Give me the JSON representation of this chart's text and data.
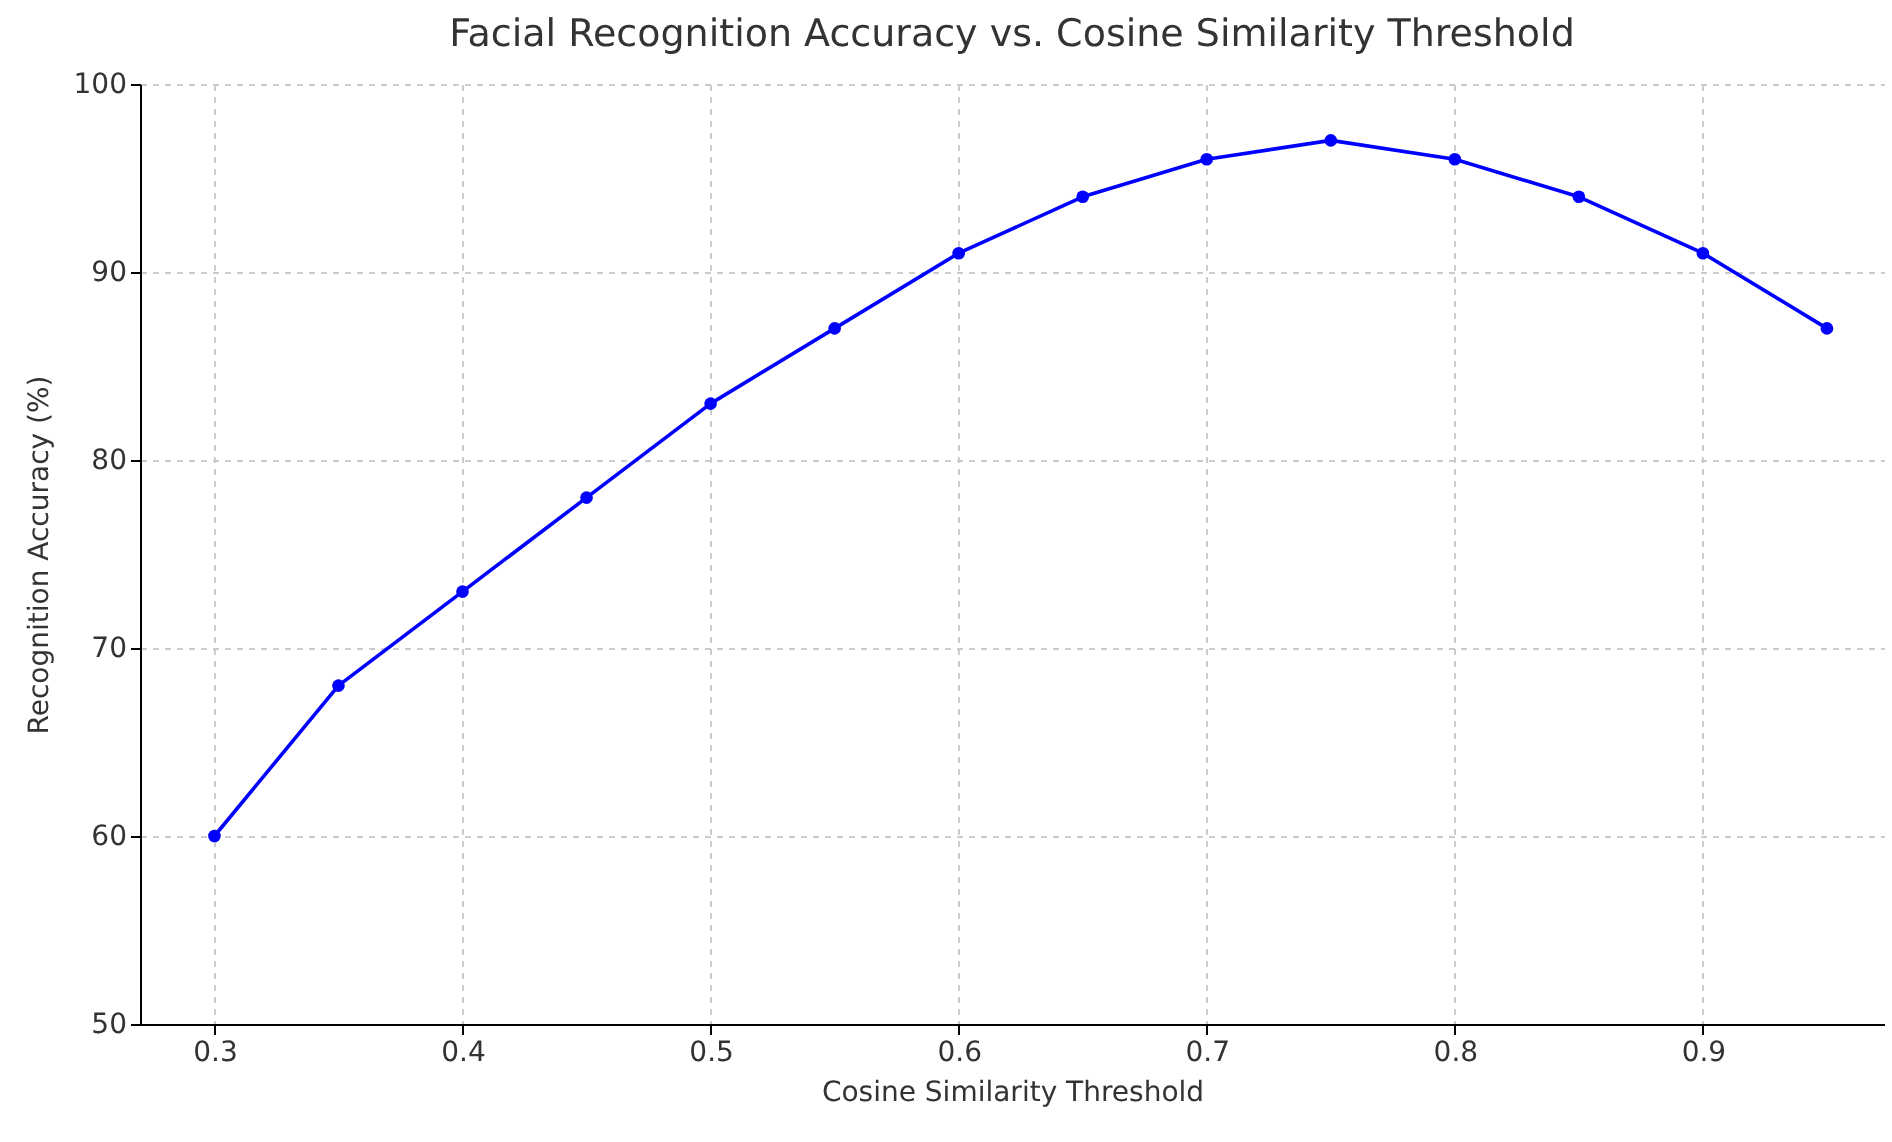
{
  "chart_data": {
    "type": "line",
    "title": "Facial Recognition Accuracy vs. Cosine Similarity Threshold",
    "xlabel": "Cosine Similarity Threshold",
    "ylabel": "Recognition Accuracy (%)",
    "x": [
      0.3,
      0.35,
      0.4,
      0.45,
      0.5,
      0.55,
      0.6,
      0.65,
      0.7,
      0.75,
      0.8,
      0.85,
      0.9,
      0.95
    ],
    "series": [
      {
        "color": "#0000ff",
        "values": [
          60,
          68,
          73,
          78,
          83,
          87,
          91,
          94,
          96,
          97,
          96,
          94,
          91,
          87
        ]
      }
    ],
    "xlim": [
      0.27,
      0.973
    ],
    "xticks": [
      0.3,
      0.4,
      0.5,
      0.6,
      0.7,
      0.8,
      0.9
    ],
    "ylim": [
      50,
      100
    ],
    "yticks": [
      50,
      60,
      70,
      80,
      90,
      100
    ],
    "grid": true,
    "marker": "circle",
    "line_style": "solid"
  }
}
